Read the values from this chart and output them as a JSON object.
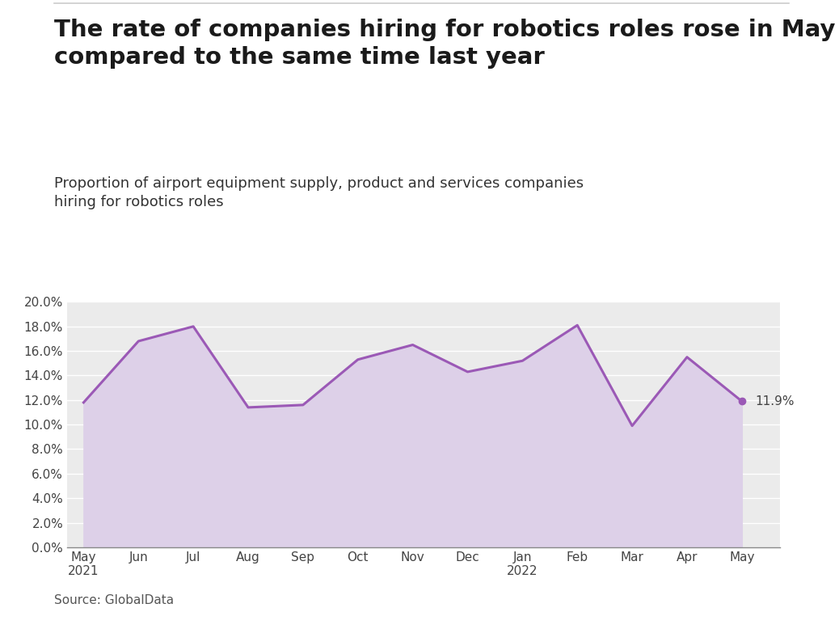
{
  "title": "The rate of companies hiring for robotics roles rose in May\ncompared to the same time last year",
  "subtitle": "Proportion of airport equipment supply, product and services companies\nhiring for robotics roles",
  "source": "Source: GlobalData",
  "x_labels": [
    "May\n2021",
    "Jun",
    "Jul",
    "Aug",
    "Sep",
    "Oct",
    "Nov",
    "Dec",
    "Jan\n2022",
    "Feb",
    "Mar",
    "Apr",
    "May"
  ],
  "y_values": [
    11.8,
    16.8,
    18.0,
    11.4,
    11.6,
    15.3,
    16.5,
    14.3,
    15.2,
    18.1,
    9.9,
    15.5,
    11.9
  ],
  "last_label": "11.9%",
  "line_color": "#9b59b6",
  "fill_color": "#ddd0e8",
  "background_color": "#ebebeb",
  "fig_background": "#ffffff",
  "ylim": [
    0,
    20
  ],
  "ytick_step": 2,
  "title_fontsize": 21,
  "subtitle_fontsize": 13,
  "source_fontsize": 11,
  "tick_fontsize": 11
}
